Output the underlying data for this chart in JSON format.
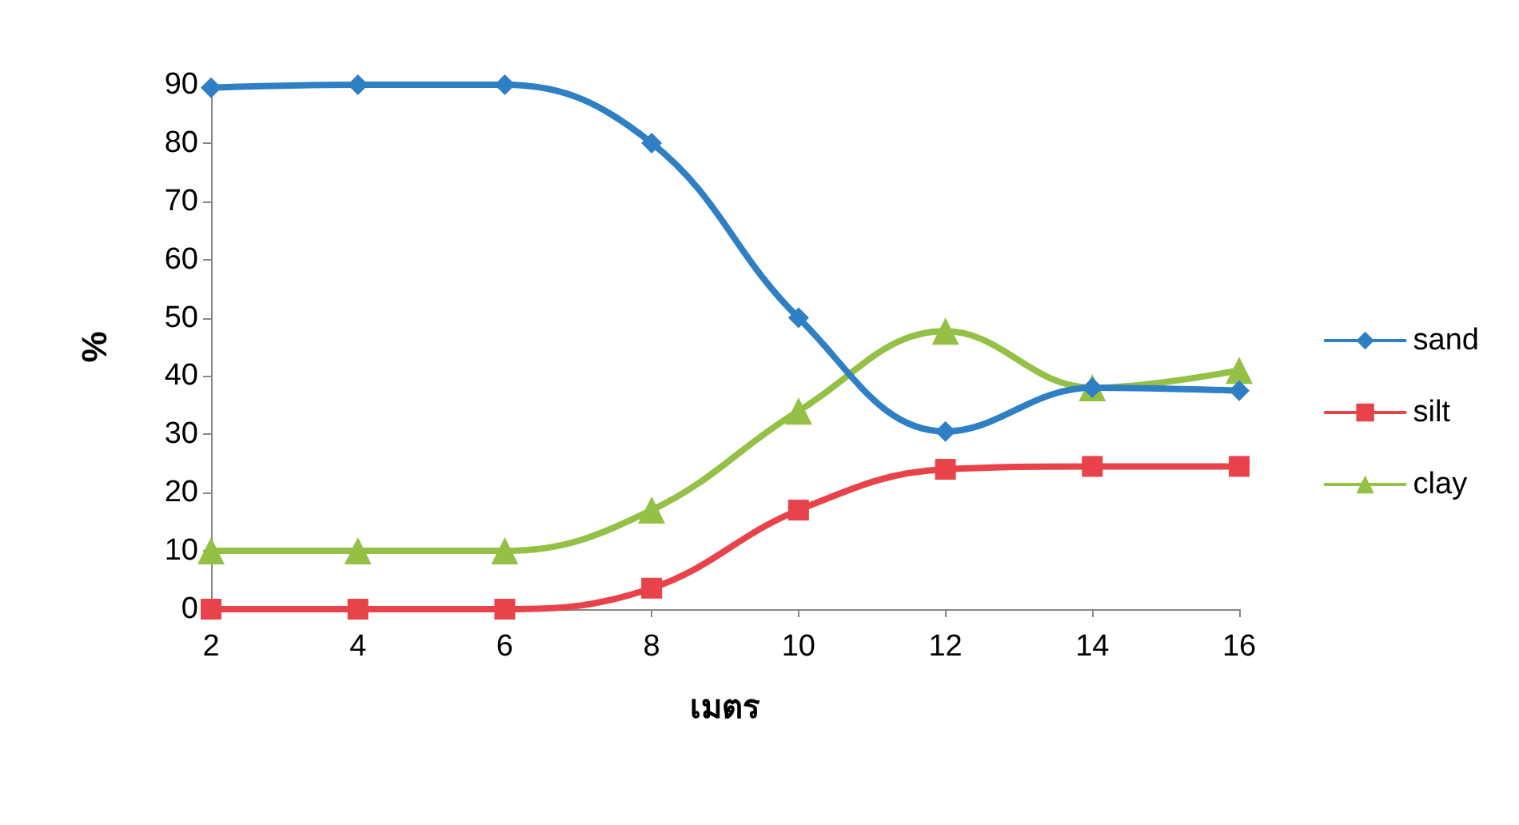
{
  "chart_data": {
    "type": "line",
    "xlabel": "เมตร",
    "ylabel": "%",
    "categories": [
      "2",
      "4",
      "6",
      "8",
      "10",
      "12",
      "14",
      "16"
    ],
    "series": [
      {
        "name": "sand",
        "color": "#2e7fc4",
        "marker": "diamond",
        "values": [
          89.5,
          90,
          90,
          80,
          50,
          30.5,
          38,
          37.5
        ]
      },
      {
        "name": "silt",
        "color": "#e8424a",
        "marker": "square",
        "values": [
          0,
          0,
          0,
          3.6,
          17,
          24,
          24.5,
          24.5
        ]
      },
      {
        "name": "clay",
        "color": "#94c045",
        "marker": "triangle",
        "values": [
          10,
          10,
          10,
          17,
          34,
          47.7,
          38,
          41
        ]
      }
    ],
    "ylim": [
      0,
      90
    ],
    "yticks": [
      0,
      10,
      20,
      30,
      40,
      50,
      60,
      70,
      80,
      90
    ],
    "grid": false,
    "legend": "right",
    "line_style": "solid"
  }
}
